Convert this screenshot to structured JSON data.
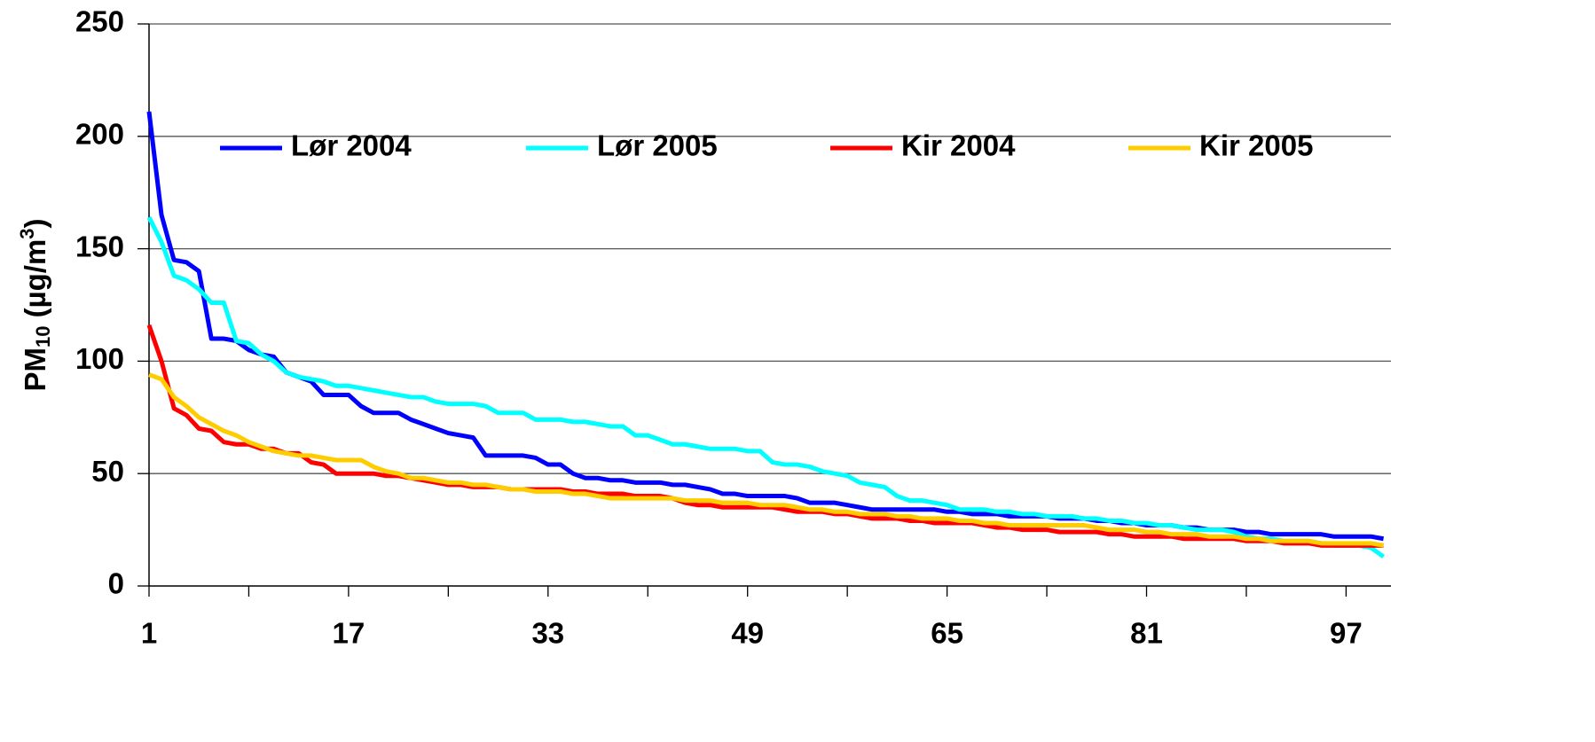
{
  "chart_data": {
    "type": "line",
    "ylabel_parts": [
      "PM",
      "10",
      " (µg/m",
      "3",
      ")"
    ],
    "x": [
      1,
      2,
      3,
      4,
      5,
      6,
      7,
      8,
      9,
      10,
      11,
      12,
      13,
      14,
      15,
      16,
      17,
      18,
      19,
      20,
      21,
      22,
      23,
      24,
      25,
      26,
      27,
      28,
      29,
      30,
      31,
      32,
      33,
      34,
      35,
      36,
      37,
      38,
      39,
      40,
      41,
      42,
      43,
      44,
      45,
      46,
      47,
      48,
      49,
      50,
      51,
      52,
      53,
      54,
      55,
      56,
      57,
      58,
      59,
      60,
      61,
      62,
      63,
      64,
      65,
      66,
      67,
      68,
      69,
      70,
      71,
      72,
      73,
      74,
      75,
      76,
      77,
      78,
      79,
      80,
      81,
      82,
      83,
      84,
      85,
      86,
      87,
      88,
      89,
      90,
      91,
      92,
      93,
      94,
      95,
      96,
      97,
      98,
      99,
      100
    ],
    "series": [
      {
        "name": "Lør 2004",
        "color": "#0000ff",
        "values": [
          211,
          165,
          145,
          144,
          140,
          110,
          110,
          109,
          105,
          103,
          102,
          95,
          93,
          91,
          85,
          85,
          85,
          80,
          77,
          77,
          77,
          74,
          72,
          70,
          68,
          67,
          66,
          58,
          58,
          58,
          58,
          57,
          54,
          54,
          50,
          48,
          48,
          47,
          47,
          46,
          46,
          46,
          45,
          45,
          44,
          43,
          41,
          41,
          40,
          40,
          40,
          40,
          39,
          37,
          37,
          37,
          36,
          35,
          34,
          34,
          34,
          34,
          34,
          34,
          33,
          33,
          32,
          32,
          32,
          31,
          31,
          31,
          31,
          30,
          30,
          30,
          29,
          29,
          28,
          28,
          27,
          27,
          27,
          26,
          26,
          25,
          25,
          25,
          24,
          24,
          23,
          23,
          23,
          23,
          23,
          22,
          22,
          22,
          22,
          21
        ]
      },
      {
        "name": "Lør 2005",
        "color": "#00ffff",
        "values": [
          164,
          153,
          138,
          136,
          132,
          126,
          126,
          109,
          108,
          103,
          100,
          95,
          93,
          92,
          91,
          89,
          89,
          88,
          87,
          86,
          85,
          84,
          84,
          82,
          81,
          81,
          81,
          80,
          77,
          77,
          77,
          74,
          74,
          74,
          73,
          73,
          72,
          71,
          71,
          67,
          67,
          65,
          63,
          63,
          62,
          61,
          61,
          61,
          60,
          60,
          55,
          54,
          54,
          53,
          51,
          50,
          49,
          46,
          45,
          44,
          40,
          38,
          38,
          37,
          36,
          34,
          34,
          34,
          33,
          33,
          32,
          32,
          31,
          31,
          31,
          30,
          30,
          29,
          29,
          28,
          28,
          27,
          27,
          26,
          25,
          25,
          25,
          24,
          22,
          21,
          21,
          20,
          20,
          20,
          19,
          18,
          18,
          18,
          17,
          13
        ]
      },
      {
        "name": "Kir 2004",
        "color": "#ff0000",
        "values": [
          116,
          100,
          79,
          76,
          70,
          69,
          64,
          63,
          63,
          61,
          61,
          59,
          59,
          55,
          54,
          50,
          50,
          50,
          50,
          49,
          49,
          48,
          47,
          46,
          45,
          45,
          44,
          44,
          44,
          43,
          43,
          43,
          43,
          43,
          42,
          42,
          41,
          41,
          41,
          40,
          40,
          40,
          39,
          37,
          36,
          36,
          35,
          35,
          35,
          35,
          35,
          34,
          33,
          33,
          33,
          32,
          32,
          31,
          30,
          30,
          30,
          29,
          29,
          28,
          28,
          28,
          28,
          27,
          26,
          26,
          25,
          25,
          25,
          24,
          24,
          24,
          24,
          23,
          23,
          22,
          22,
          22,
          22,
          21,
          21,
          21,
          21,
          21,
          20,
          20,
          20,
          19,
          19,
          19,
          18,
          18,
          18,
          18,
          18,
          18
        ]
      },
      {
        "name": "Kir 2005",
        "color": "#ffcc00",
        "values": [
          94,
          92,
          84,
          80,
          75,
          72,
          69,
          67,
          64,
          62,
          60,
          59,
          58,
          58,
          57,
          56,
          56,
          56,
          53,
          51,
          50,
          48,
          48,
          47,
          46,
          46,
          45,
          45,
          44,
          43,
          43,
          42,
          42,
          42,
          41,
          41,
          40,
          39,
          39,
          39,
          39,
          39,
          39,
          38,
          38,
          38,
          37,
          37,
          37,
          36,
          36,
          36,
          35,
          34,
          34,
          33,
          33,
          32,
          32,
          32,
          31,
          31,
          30,
          30,
          30,
          29,
          29,
          28,
          28,
          27,
          27,
          27,
          27,
          27,
          27,
          27,
          26,
          25,
          25,
          25,
          24,
          24,
          23,
          23,
          23,
          22,
          22,
          22,
          21,
          21,
          20,
          20,
          20,
          20,
          19,
          19,
          19,
          19,
          19,
          18
        ]
      }
    ],
    "xlim": [
      1,
      100.6
    ],
    "xticks": [
      1,
      17,
      33,
      49,
      65,
      81,
      97
    ],
    "xminor_ticks": [
      9,
      25,
      41,
      57,
      73,
      89
    ],
    "ylim": [
      0,
      250
    ],
    "yticks": [
      0,
      50,
      100,
      150,
      200,
      250
    ],
    "grid": true,
    "legend": "top"
  }
}
